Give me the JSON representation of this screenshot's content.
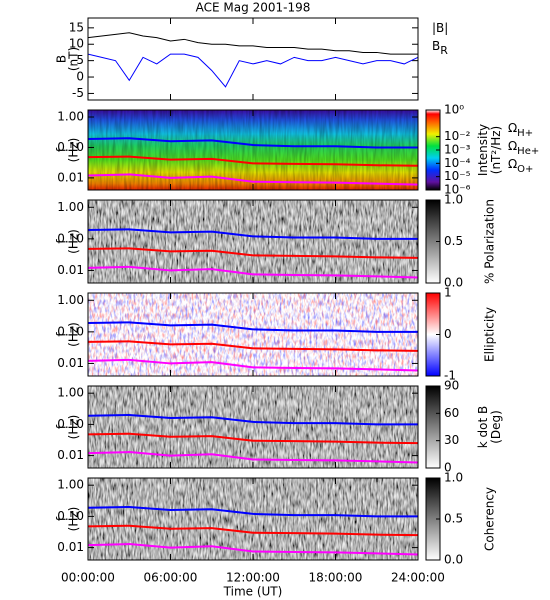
{
  "chart_data": [
    {
      "type": "line",
      "title": "ACE Mag 2001-198",
      "ylabel": [
        "B",
        "(nT)"
      ],
      "xlim": [
        0,
        24
      ],
      "ylim": [
        -7,
        18
      ],
      "yticks": [
        -5,
        0,
        5,
        10,
        15
      ],
      "x": [
        0,
        1,
        2,
        3,
        4,
        5,
        6,
        7,
        8,
        9,
        10,
        11,
        12,
        13,
        14,
        15,
        16,
        17,
        18,
        19,
        20,
        21,
        22,
        23,
        24
      ],
      "series": [
        {
          "name": "|B|",
          "color": "#000000",
          "values": [
            12,
            12.5,
            13,
            13.5,
            12.5,
            12,
            11,
            11.5,
            10.5,
            10,
            10,
            9.5,
            9.5,
            9,
            9,
            9,
            8.5,
            8.5,
            8,
            8,
            7.5,
            7.5,
            7,
            7,
            7
          ]
        },
        {
          "name": "B",
          "sub": "R",
          "color": "#0000ff",
          "values": [
            7,
            6,
            5,
            -1,
            6,
            4,
            7,
            7,
            6,
            2,
            -3,
            5,
            4,
            5,
            4,
            6,
            5,
            5,
            6,
            5,
            4,
            5,
            5,
            4,
            6
          ]
        }
      ]
    },
    {
      "type": "spectrogram",
      "ylabel": [
        "f",
        "(Hz)"
      ],
      "xlim": [
        0,
        24
      ],
      "ylim": [
        0.004,
        1.7
      ],
      "log_y": true,
      "yticks": [
        0.01,
        {
          "value": 0.1,
          "label": "0.10"
        },
        {
          "value": 1,
          "label": "1.00"
        }
      ],
      "colorbar": "intensity",
      "cbar_label": [
        "Intensity",
        "(nT²/Hz)"
      ],
      "clim": [
        1e-06,
        1
      ],
      "log_c": true,
      "cticks": [
        {
          "value": 1,
          "label": "10⁰"
        },
        {
          "value": 0.01,
          "label": "10⁻²"
        },
        {
          "value": 0.001,
          "label": "10⁻³"
        },
        {
          "value": 0.0001,
          "label": "10⁻⁴"
        },
        {
          "value": 1e-05,
          "label": "10⁻⁵"
        },
        {
          "value": 1e-06,
          "label": "10⁻⁶"
        }
      ],
      "legend": true,
      "x": [
        0,
        3,
        6,
        9,
        12,
        15,
        18,
        21,
        24
      ],
      "series": [
        {
          "name": "Ω",
          "sub": "H+",
          "color": "#0000ff",
          "values": [
            0.19,
            0.2,
            0.16,
            0.17,
            0.12,
            0.11,
            0.11,
            0.1,
            0.1
          ]
        },
        {
          "name": "Ω",
          "sub": "He+",
          "color": "#ff0000",
          "values": [
            0.048,
            0.05,
            0.04,
            0.042,
            0.03,
            0.029,
            0.028,
            0.026,
            0.025
          ]
        },
        {
          "name": "Ω",
          "sub": "O+",
          "color": "#ff00ff",
          "values": [
            0.012,
            0.013,
            0.01,
            0.011,
            0.0075,
            0.0072,
            0.007,
            0.0065,
            0.006
          ]
        }
      ]
    },
    {
      "type": "spectrogram",
      "ylabel": [
        "f",
        "(Hz)"
      ],
      "xlim": [
        0,
        24
      ],
      "ylim": [
        0.004,
        1.7
      ],
      "log_y": true,
      "yticks": [
        0.01,
        {
          "value": 0.1,
          "label": "0.10"
        },
        {
          "value": 1,
          "label": "1.00"
        }
      ],
      "colorbar": "gray",
      "cbar_label": [
        "% Polarization"
      ],
      "clim": [
        0,
        1
      ],
      "cticks": [
        {
          "value": 0,
          "label": "0.0"
        },
        0.5,
        {
          "value": 1,
          "label": "1.0"
        }
      ],
      "x": [
        0,
        3,
        6,
        9,
        12,
        15,
        18,
        21,
        24
      ],
      "series": [
        {
          "color": "#0000ff",
          "values": [
            0.19,
            0.2,
            0.16,
            0.17,
            0.12,
            0.11,
            0.11,
            0.1,
            0.1
          ]
        },
        {
          "color": "#ff0000",
          "values": [
            0.048,
            0.05,
            0.04,
            0.042,
            0.03,
            0.029,
            0.028,
            0.026,
            0.025
          ]
        },
        {
          "color": "#ff00ff",
          "values": [
            0.012,
            0.013,
            0.01,
            0.011,
            0.0075,
            0.0072,
            0.007,
            0.0065,
            0.006
          ]
        }
      ]
    },
    {
      "type": "spectrogram",
      "ylabel": [
        "f",
        "(Hz)"
      ],
      "xlim": [
        0,
        24
      ],
      "ylim": [
        0.004,
        1.7
      ],
      "log_y": true,
      "yticks": [
        0.01,
        {
          "value": 0.1,
          "label": "0.10"
        },
        {
          "value": 1,
          "label": "1.00"
        }
      ],
      "colorbar": "redblue",
      "cbar_label": [
        "Ellipticity"
      ],
      "clim": [
        -1,
        1
      ],
      "cticks": [
        -1,
        0,
        1
      ],
      "x": [
        0,
        3,
        6,
        9,
        12,
        15,
        18,
        21,
        24
      ],
      "series": [
        {
          "color": "#0000ff",
          "values": [
            0.19,
            0.2,
            0.16,
            0.17,
            0.12,
            0.11,
            0.11,
            0.1,
            0.1
          ]
        },
        {
          "color": "#ff0000",
          "values": [
            0.048,
            0.05,
            0.04,
            0.042,
            0.03,
            0.029,
            0.028,
            0.026,
            0.025
          ]
        },
        {
          "color": "#ff00ff",
          "values": [
            0.012,
            0.013,
            0.01,
            0.011,
            0.0075,
            0.0072,
            0.007,
            0.0065,
            0.006
          ]
        }
      ]
    },
    {
      "type": "spectrogram",
      "ylabel": [
        "f",
        "(Hz)"
      ],
      "xlim": [
        0,
        24
      ],
      "ylim": [
        0.004,
        1.7
      ],
      "log_y": true,
      "yticks": [
        0.01,
        {
          "value": 0.1,
          "label": "0.10"
        },
        {
          "value": 1,
          "label": "1.00"
        }
      ],
      "colorbar": "gray",
      "cbar_label": [
        "k dot B",
        "(Deg)"
      ],
      "clim": [
        0,
        90
      ],
      "cticks": [
        0,
        30,
        60,
        90
      ],
      "x": [
        0,
        3,
        6,
        9,
        12,
        15,
        18,
        21,
        24
      ],
      "series": [
        {
          "color": "#0000ff",
          "values": [
            0.19,
            0.2,
            0.16,
            0.17,
            0.12,
            0.11,
            0.11,
            0.1,
            0.1
          ]
        },
        {
          "color": "#ff0000",
          "values": [
            0.048,
            0.05,
            0.04,
            0.042,
            0.03,
            0.029,
            0.028,
            0.026,
            0.025
          ]
        },
        {
          "color": "#ff00ff",
          "values": [
            0.012,
            0.013,
            0.01,
            0.011,
            0.0075,
            0.0072,
            0.007,
            0.0065,
            0.006
          ]
        }
      ]
    },
    {
      "type": "spectrogram",
      "ylabel": [
        "f",
        "(Hz)"
      ],
      "xlim": [
        0,
        24
      ],
      "ylim": [
        0.004,
        1.7
      ],
      "log_y": true,
      "yticks": [
        0.01,
        {
          "value": 0.1,
          "label": "0.10"
        },
        {
          "value": 1,
          "label": "1.00"
        }
      ],
      "colorbar": "gray",
      "cbar_label": [
        "Coherency"
      ],
      "clim": [
        0,
        1
      ],
      "cticks": [
        {
          "value": 0,
          "label": "0.0"
        },
        0.5,
        {
          "value": 1,
          "label": "1.0"
        }
      ],
      "x": [
        0,
        3,
        6,
        9,
        12,
        15,
        18,
        21,
        24
      ],
      "series": [
        {
          "color": "#0000ff",
          "values": [
            0.19,
            0.2,
            0.16,
            0.17,
            0.12,
            0.11,
            0.11,
            0.1,
            0.1
          ]
        },
        {
          "color": "#ff0000",
          "values": [
            0.048,
            0.05,
            0.04,
            0.042,
            0.03,
            0.029,
            0.028,
            0.026,
            0.025
          ]
        },
        {
          "color": "#ff00ff",
          "values": [
            0.012,
            0.013,
            0.01,
            0.011,
            0.0075,
            0.0072,
            0.007,
            0.0065,
            0.006
          ]
        }
      ],
      "xticks": [
        {
          "value": 0,
          "label": "00:00:00"
        },
        {
          "value": 6,
          "label": "06:00:00"
        },
        {
          "value": 12,
          "label": "12:00:00"
        },
        {
          "value": 18,
          "label": "18:00:00"
        },
        {
          "value": 24,
          "label": "24:00:00"
        }
      ],
      "xlabel": "Time (UT)"
    }
  ]
}
